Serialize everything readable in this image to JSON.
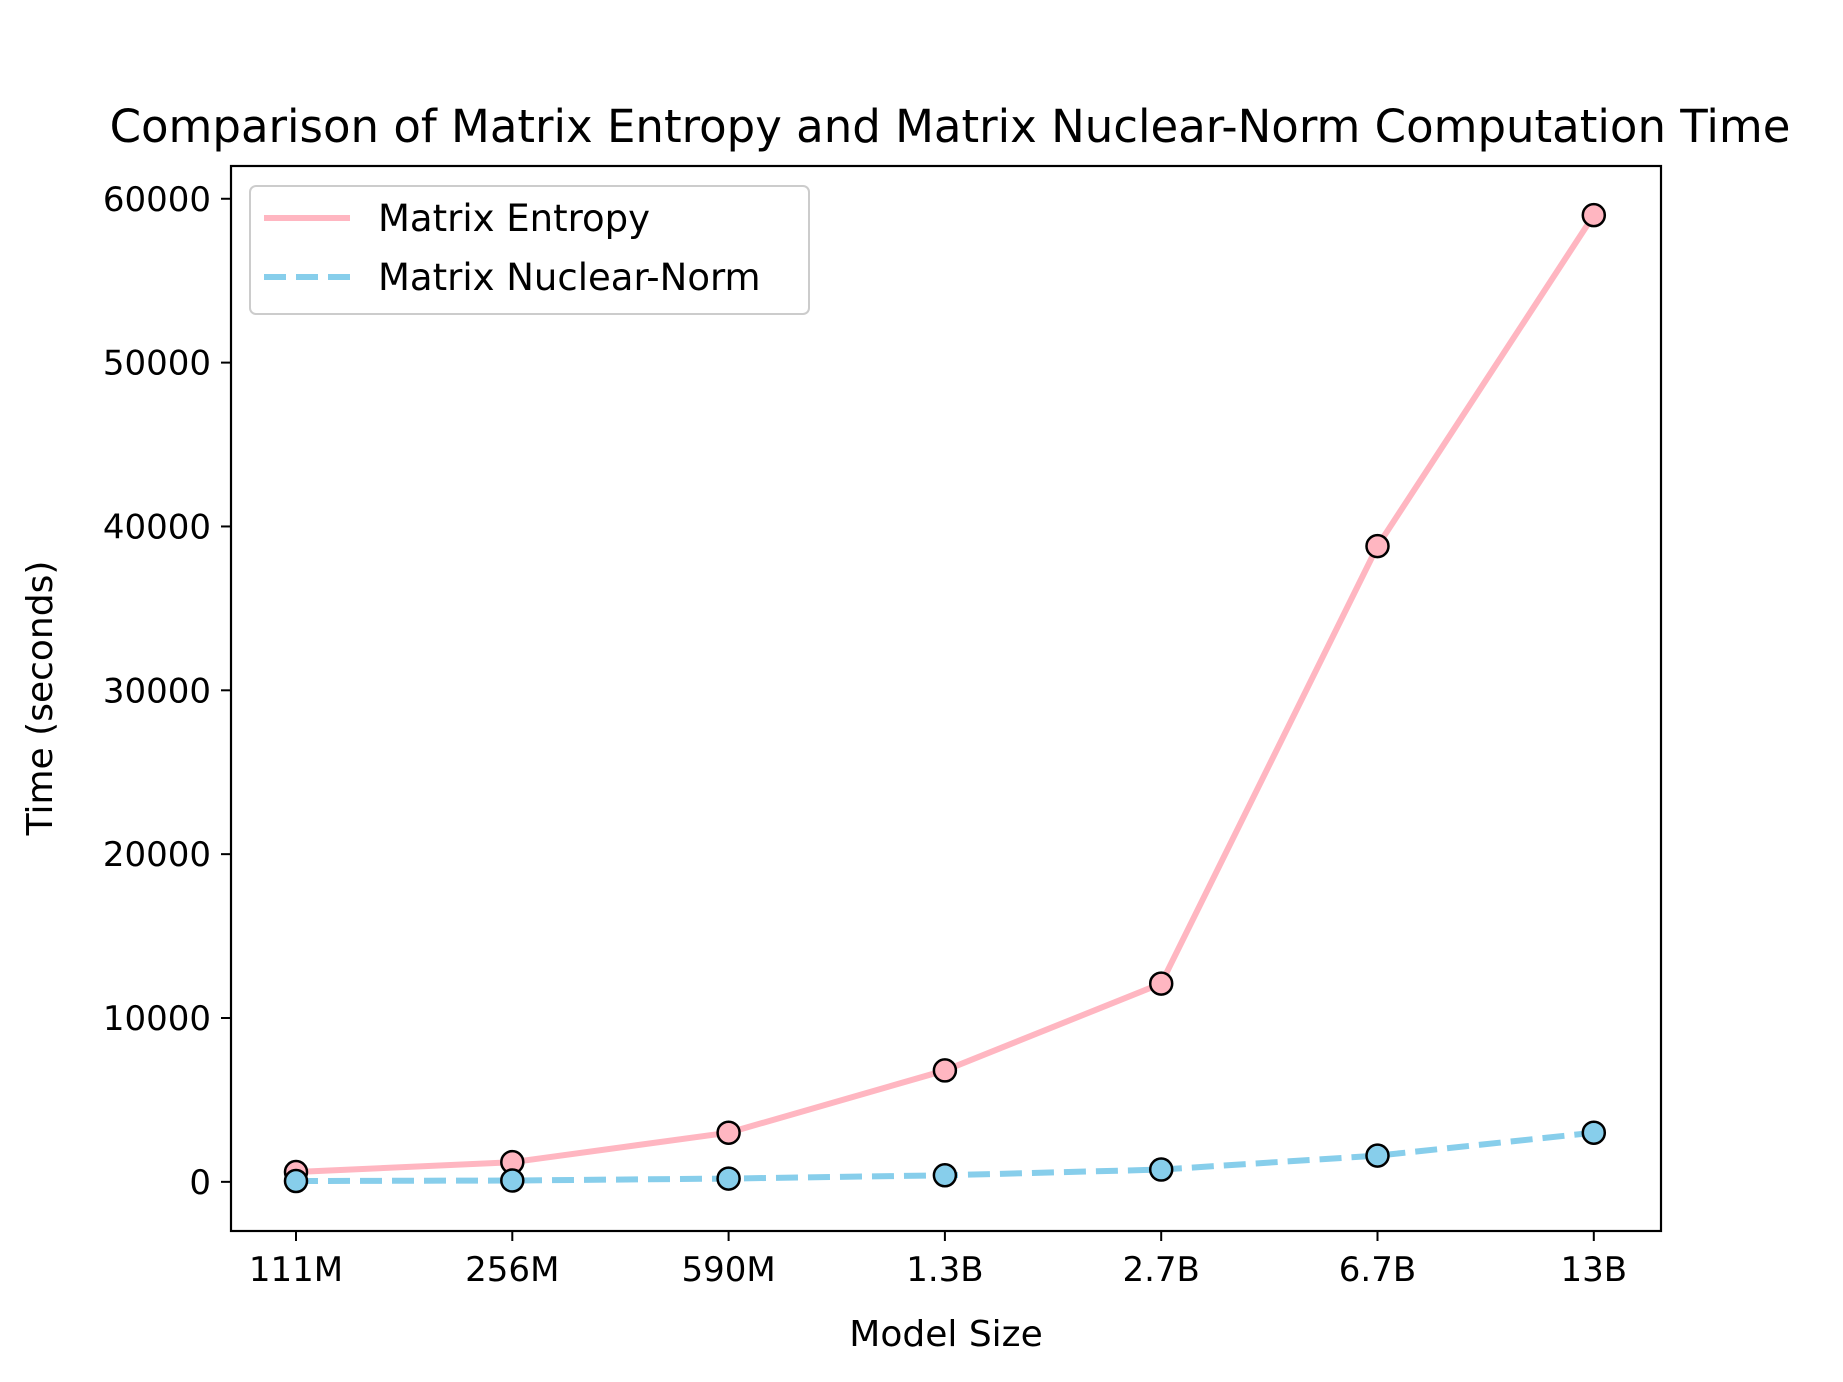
{
  "chart_data": {
    "type": "line",
    "title": "Comparison of Matrix Entropy and Matrix Nuclear-Norm Computation Time",
    "xlabel": "Model Size",
    "ylabel": "Time (seconds)",
    "categories": [
      "111M",
      "256M",
      "590M",
      "1.3B",
      "2.7B",
      "6.7B",
      "13B"
    ],
    "ylim": [
      -3000,
      62000
    ],
    "yticks": [
      0,
      10000,
      20000,
      30000,
      40000,
      50000,
      60000
    ],
    "grid": false,
    "legend_position": "top-left",
    "series": [
      {
        "name": "Matrix Entropy",
        "values": [
          600,
          1200,
          3000,
          6800,
          12100,
          38800,
          59000
        ],
        "color": "#ffb6c1",
        "line_style": "solid",
        "marker": "circle"
      },
      {
        "name": "Matrix Nuclear-Norm",
        "values": [
          50,
          80,
          200,
          400,
          750,
          1600,
          3000
        ],
        "color": "#87ceeb",
        "line_style": "dashed",
        "marker": "circle"
      }
    ]
  }
}
